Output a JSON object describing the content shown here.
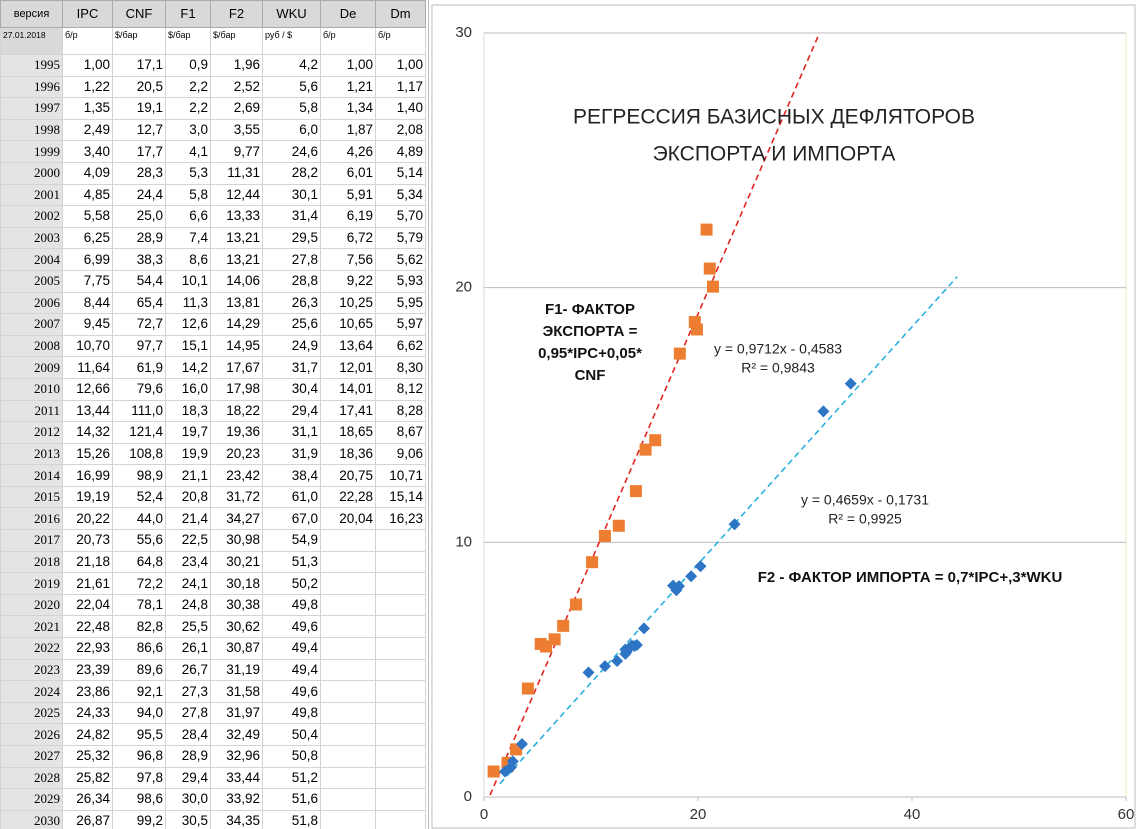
{
  "table": {
    "headers": [
      "версия",
      "IPC",
      "CNF",
      "F1",
      "F2",
      "WKU",
      "De",
      "Dm"
    ],
    "units": [
      "27.01.2018",
      "б/р",
      "$/бар",
      "$/бар",
      "$/бар",
      "руб / $",
      "б/р",
      "б/р"
    ],
    "rows": [
      [
        "1995",
        "1,00",
        "17,1",
        "0,9",
        "1,96",
        "4,2",
        "1,00",
        "1,00"
      ],
      [
        "1996",
        "1,22",
        "20,5",
        "2,2",
        "2,52",
        "5,6",
        "1,21",
        "1,17"
      ],
      [
        "1997",
        "1,35",
        "19,1",
        "2,2",
        "2,69",
        "5,8",
        "1,34",
        "1,40"
      ],
      [
        "1998",
        "2,49",
        "12,7",
        "3,0",
        "3,55",
        "6,0",
        "1,87",
        "2,08"
      ],
      [
        "1999",
        "3,40",
        "17,7",
        "4,1",
        "9,77",
        "24,6",
        "4,26",
        "4,89"
      ],
      [
        "2000",
        "4,09",
        "28,3",
        "5,3",
        "11,31",
        "28,2",
        "6,01",
        "5,14"
      ],
      [
        "2001",
        "4,85",
        "24,4",
        "5,8",
        "12,44",
        "30,1",
        "5,91",
        "5,34"
      ],
      [
        "2002",
        "5,58",
        "25,0",
        "6,6",
        "13,33",
        "31,4",
        "6,19",
        "5,70"
      ],
      [
        "2003",
        "6,25",
        "28,9",
        "7,4",
        "13,21",
        "29,5",
        "6,72",
        "5,79"
      ],
      [
        "2004",
        "6,99",
        "38,3",
        "8,6",
        "13,21",
        "27,8",
        "7,56",
        "5,62"
      ],
      [
        "2005",
        "7,75",
        "54,4",
        "10,1",
        "14,06",
        "28,8",
        "9,22",
        "5,93"
      ],
      [
        "2006",
        "8,44",
        "65,4",
        "11,3",
        "13,81",
        "26,3",
        "10,25",
        "5,95"
      ],
      [
        "2007",
        "9,45",
        "72,7",
        "12,6",
        "14,29",
        "25,6",
        "10,65",
        "5,97"
      ],
      [
        "2008",
        "10,70",
        "97,7",
        "15,1",
        "14,95",
        "24,9",
        "13,64",
        "6,62"
      ],
      [
        "2009",
        "11,64",
        "61,9",
        "14,2",
        "17,67",
        "31,7",
        "12,01",
        "8,30"
      ],
      [
        "2010",
        "12,66",
        "79,6",
        "16,0",
        "17,98",
        "30,4",
        "14,01",
        "8,12"
      ],
      [
        "2011",
        "13,44",
        "111,0",
        "18,3",
        "18,22",
        "29,4",
        "17,41",
        "8,28"
      ],
      [
        "2012",
        "14,32",
        "121,4",
        "19,7",
        "19,36",
        "31,1",
        "18,65",
        "8,67"
      ],
      [
        "2013",
        "15,26",
        "108,8",
        "19,9",
        "20,23",
        "31,9",
        "18,36",
        "9,06"
      ],
      [
        "2014",
        "16,99",
        "98,9",
        "21,1",
        "23,42",
        "38,4",
        "20,75",
        "10,71"
      ],
      [
        "2015",
        "19,19",
        "52,4",
        "20,8",
        "31,72",
        "61,0",
        "22,28",
        "15,14"
      ],
      [
        "2016",
        "20,22",
        "44,0",
        "21,4",
        "34,27",
        "67,0",
        "20,04",
        "16,23"
      ],
      [
        "2017",
        "20,73",
        "55,6",
        "22,5",
        "30,98",
        "54,9"
      ],
      [
        "2018",
        "21,18",
        "64,8",
        "23,4",
        "30,21",
        "51,3"
      ],
      [
        "2019",
        "21,61",
        "72,2",
        "24,1",
        "30,18",
        "50,2"
      ],
      [
        "2020",
        "22,04",
        "78,1",
        "24,8",
        "30,38",
        "49,8"
      ],
      [
        "2021",
        "22,48",
        "82,8",
        "25,5",
        "30,62",
        "49,6"
      ],
      [
        "2022",
        "22,93",
        "86,6",
        "26,1",
        "30,87",
        "49,4"
      ],
      [
        "2023",
        "23,39",
        "89,6",
        "26,7",
        "31,19",
        "49,4"
      ],
      [
        "2024",
        "23,86",
        "92,1",
        "27,3",
        "31,58",
        "49,6"
      ],
      [
        "2025",
        "24,33",
        "94,0",
        "27,8",
        "31,97",
        "49,8"
      ],
      [
        "2026",
        "24,82",
        "95,5",
        "28,4",
        "32,49",
        "50,4"
      ],
      [
        "2027",
        "25,32",
        "96,8",
        "28,9",
        "32,96",
        "50,8"
      ],
      [
        "2028",
        "25,82",
        "97,8",
        "29,4",
        "33,44",
        "51,2"
      ],
      [
        "2029",
        "26,34",
        "98,6",
        "30,0",
        "33,92",
        "51,6"
      ],
      [
        "2030",
        "26,87",
        "99,2",
        "30,5",
        "34,35",
        "51,8"
      ]
    ]
  },
  "chart_data": {
    "type": "scatter",
    "title": [
      "РЕГРЕССИЯ БАЗИСНЫХ ДЕФЛЯТОРОВ",
      "ЭКСПОРТА И ИМПОРТА"
    ],
    "annotations": {
      "f1_label": [
        "F1- ФАКТОР",
        "ЭКСПОРТА =",
        "0,95*IPC+0,05*",
        "CNF"
      ],
      "trend1": [
        "y = 0,9712x - 0,4583",
        "R² = 0,9843"
      ],
      "trend2": [
        "y = 0,4659x - 0,1731",
        "R² = 0,9925"
      ],
      "f2_label": "F2 - ФАКТОР ИМПОРТА = 0,7*IPC+,3*WKU"
    },
    "series": [
      {
        "color": "#ED7D31",
        "marker": "square",
        "trendline_color": "#e3261f",
        "x": [
          0.9,
          2.2,
          2.2,
          3.0,
          4.1,
          5.3,
          5.8,
          6.6,
          7.4,
          8.6,
          10.1,
          11.3,
          12.6,
          15.1,
          14.2,
          16.0,
          18.3,
          19.7,
          19.9,
          21.1,
          20.8,
          21.4
        ],
        "values": [
          1.0,
          1.21,
          1.34,
          1.87,
          4.26,
          6.01,
          5.91,
          6.19,
          6.72,
          7.56,
          9.22,
          10.25,
          10.65,
          13.64,
          12.01,
          14.01,
          17.41,
          18.65,
          18.36,
          20.75,
          22.28,
          20.04
        ]
      },
      {
        "color": "#2E75C6",
        "marker": "diamond",
        "trendline_color": "#2ab0e0",
        "x": [
          1.96,
          2.52,
          2.69,
          3.55,
          9.77,
          11.31,
          12.44,
          13.33,
          13.21,
          13.21,
          14.06,
          13.81,
          14.29,
          14.95,
          17.67,
          17.98,
          18.22,
          19.36,
          20.23,
          23.42,
          31.72,
          34.27
        ],
        "values": [
          1.0,
          1.17,
          1.4,
          2.08,
          4.89,
          5.14,
          5.34,
          5.7,
          5.79,
          5.62,
          5.93,
          5.95,
          5.97,
          6.62,
          8.3,
          8.12,
          8.28,
          8.67,
          9.06,
          10.71,
          15.14,
          16.23
        ]
      }
    ],
    "xlim": [
      0,
      60
    ],
    "xticks": [
      0,
      20,
      40,
      60
    ],
    "ylim": [
      0,
      30
    ],
    "yticks": [
      0,
      10,
      20,
      30
    ],
    "grid": true
  }
}
